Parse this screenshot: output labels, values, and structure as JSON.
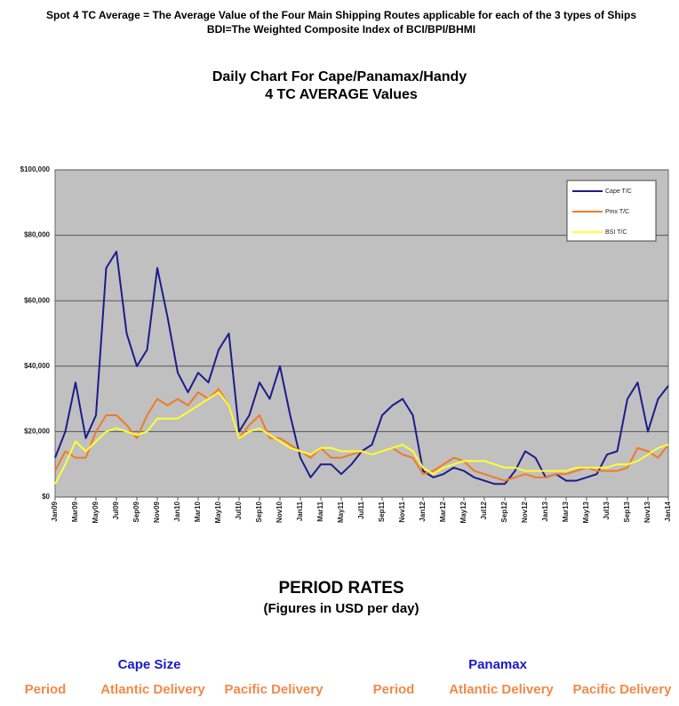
{
  "header": {
    "line1": "Spot 4 TC Average = The Average Value of the Four Main Shipping Routes applicable for each of the 3 types of Ships",
    "line2": "BDI=The Weighted Composite Index of BCI/BPI/BHMI"
  },
  "chart_data": {
    "type": "line",
    "title": "Daily Chart For Cape/Panamax/Handy",
    "subtitle": "4 TC AVERAGE Values",
    "categories": [
      "Jan09",
      null,
      "Mar09",
      null,
      "May09",
      null,
      "Jul09",
      null,
      "Sep09",
      null,
      "Nov09",
      null,
      "Jan10",
      null,
      "Mar10",
      null,
      "May10",
      null,
      "Jul10",
      null,
      "Sep10",
      null,
      "Nov10",
      null,
      "Jan11",
      null,
      "Mar11",
      null,
      "May11",
      null,
      "Jul11",
      null,
      "Sep11",
      null,
      "Nov11",
      null,
      "Jan12",
      null,
      "Mar12",
      null,
      "May12",
      null,
      "Jul12",
      null,
      "Sep12",
      null,
      "Nov12",
      null,
      "Jan13",
      null,
      "Mar13",
      null,
      "May13",
      null,
      "Jul13",
      null,
      "Sep13",
      null,
      "Nov13",
      null,
      "Jan14"
    ],
    "series": [
      {
        "name": "Cape T/C",
        "color": "#1c1c8c",
        "values": [
          12000,
          20000,
          35000,
          18000,
          25000,
          70000,
          75000,
          50000,
          40000,
          45000,
          70000,
          55000,
          38000,
          32000,
          38000,
          35000,
          45000,
          50000,
          20000,
          25000,
          35000,
          30000,
          40000,
          25000,
          12000,
          6000,
          10000,
          10000,
          7000,
          10000,
          14000,
          16000,
          25000,
          28000,
          30000,
          25000,
          8000,
          6000,
          7000,
          9000,
          8000,
          6000,
          5000,
          4000,
          4000,
          8000,
          14000,
          12000,
          6000,
          7000,
          5000,
          5000,
          6000,
          7000,
          13000,
          14000,
          30000,
          35000,
          20000,
          30000,
          34000
        ]
      },
      {
        "name": "Pmx T/C",
        "color": "#f07a28",
        "values": [
          8000,
          14000,
          12000,
          12000,
          20000,
          25000,
          25000,
          22000,
          18000,
          25000,
          30000,
          28000,
          30000,
          28000,
          32000,
          30000,
          33000,
          28000,
          18000,
          22000,
          25000,
          18000,
          18000,
          16000,
          14000,
          12000,
          15000,
          12000,
          12000,
          13000,
          14000,
          13000,
          14000,
          15000,
          13000,
          12000,
          7000,
          8000,
          10000,
          12000,
          11000,
          8000,
          7000,
          6000,
          5000,
          6000,
          7000,
          6000,
          6000,
          7000,
          7000,
          8000,
          9000,
          8000,
          8000,
          8000,
          9000,
          15000,
          14000,
          12000,
          16000
        ]
      },
      {
        "name": "BSI T/C",
        "color": "#ffff30",
        "values": [
          4000,
          10000,
          17000,
          14000,
          17000,
          20000,
          21000,
          20000,
          19000,
          20000,
          24000,
          24000,
          24000,
          26000,
          28000,
          30000,
          32000,
          28000,
          18000,
          20000,
          21000,
          19000,
          17000,
          15000,
          14000,
          13000,
          15000,
          15000,
          14000,
          14000,
          14000,
          13000,
          14000,
          15000,
          16000,
          14000,
          9000,
          7000,
          9000,
          10000,
          11000,
          11000,
          11000,
          10000,
          9000,
          9000,
          8000,
          8000,
          8000,
          8000,
          8000,
          9000,
          9000,
          9000,
          9000,
          10000,
          10000,
          11000,
          13000,
          15000,
          16000
        ]
      }
    ],
    "ylim": [
      0,
      100000
    ],
    "yticks": [
      {
        "value": 0,
        "label": "$0"
      },
      {
        "value": 20000,
        "label": "$20,000"
      },
      {
        "value": 40000,
        "label": "$40,000"
      },
      {
        "value": 60000,
        "label": "$60,000"
      },
      {
        "value": 80000,
        "label": "$80,000"
      },
      {
        "value": 100000,
        "label": "$100,000"
      }
    ],
    "grid": true,
    "legend": "top-right"
  },
  "period_rates": {
    "title": "PERIOD RATES",
    "subtitle": "(Figures in USD per day)",
    "groups": [
      {
        "name": "Cape Size",
        "columns": [
          "Period",
          "Atlantic Delivery",
          "Pacific Delivery"
        ]
      },
      {
        "name": "Panamax",
        "columns": [
          "Period",
          "Atlantic Delivery",
          "Pacific Delivery"
        ]
      }
    ]
  }
}
